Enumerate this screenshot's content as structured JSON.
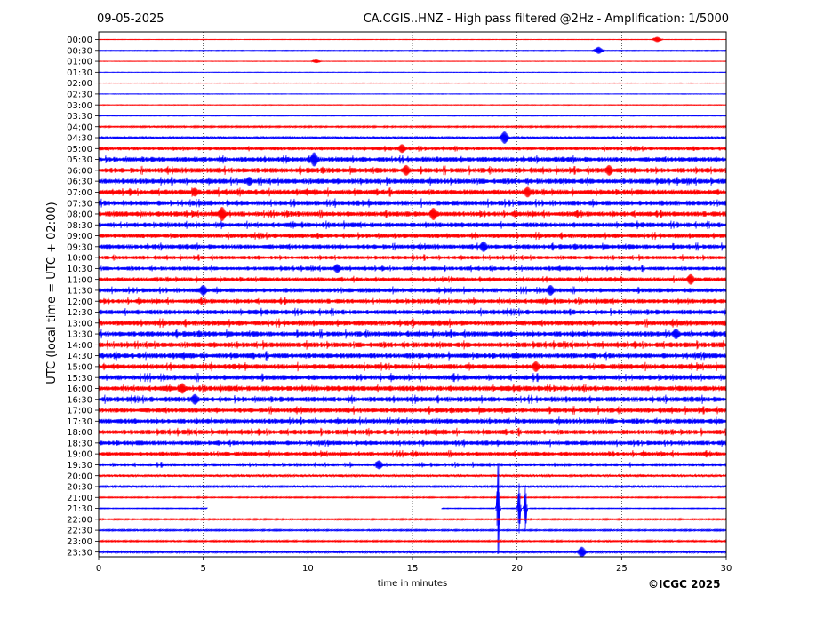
{
  "chart_data": {
    "type": "line",
    "date": "09-05-2025",
    "title": "CA.CGIS..HNZ - High pass filtered @2Hz - Amplification: 1/5000",
    "xlabel": "time in minutes",
    "ylabel": "UTC (local time = UTC + 02:00)",
    "xlim": [
      0,
      30
    ],
    "x_ticks": [
      0,
      5,
      10,
      15,
      20,
      25,
      30
    ],
    "rows": [
      "00:00",
      "00:30",
      "01:00",
      "01:30",
      "02:00",
      "02:30",
      "03:00",
      "03:30",
      "04:00",
      "04:30",
      "05:00",
      "05:30",
      "06:00",
      "06:30",
      "07:00",
      "07:30",
      "08:00",
      "08:30",
      "09:00",
      "09:30",
      "10:00",
      "10:30",
      "11:00",
      "11:30",
      "12:00",
      "12:30",
      "13:00",
      "13:30",
      "14:00",
      "14:30",
      "15:00",
      "15:30",
      "16:00",
      "16:30",
      "17:00",
      "17:30",
      "18:00",
      "18:30",
      "19:00",
      "19:30",
      "20:00",
      "20:30",
      "21:00",
      "21:30",
      "22:00",
      "22:30",
      "23:00",
      "23:30"
    ],
    "series_colors": [
      "#ff0000",
      "#0000ff"
    ],
    "row_noise_level": [
      0.3,
      0.3,
      0.3,
      0.3,
      0.3,
      0.3,
      0.4,
      0.5,
      1.0,
      1.4,
      2.0,
      2.8,
      3.0,
      3.0,
      3.0,
      3.0,
      3.0,
      2.8,
      2.6,
      2.6,
      2.2,
      2.2,
      2.4,
      2.6,
      2.6,
      2.8,
      3.0,
      3.0,
      3.0,
      3.0,
      3.0,
      3.0,
      3.0,
      3.0,
      2.8,
      2.8,
      2.8,
      2.6,
      2.4,
      2.0,
      1.4,
      1.2,
      0.8,
      0.6,
      0.9,
      1.0,
      1.0,
      1.2
    ],
    "events": [
      {
        "row": "00:00",
        "minute": 26.7,
        "amplitude": 3
      },
      {
        "row": "00:30",
        "minute": 23.9,
        "amplitude": 4
      },
      {
        "row": "01:00",
        "minute": 10.4,
        "amplitude": 2
      },
      {
        "row": "04:30",
        "minute": 19.4,
        "amplitude": 7
      },
      {
        "row": "05:00",
        "minute": 14.5,
        "amplitude": 5
      },
      {
        "row": "05:30",
        "minute": 10.3,
        "amplitude": 8
      },
      {
        "row": "06:00",
        "minute": 14.7,
        "amplitude": 6
      },
      {
        "row": "06:00",
        "minute": 24.4,
        "amplitude": 6
      },
      {
        "row": "06:30",
        "minute": 7.2,
        "amplitude": 5
      },
      {
        "row": "07:00",
        "minute": 4.6,
        "amplitude": 5
      },
      {
        "row": "07:00",
        "minute": 20.5,
        "amplitude": 6
      },
      {
        "row": "08:00",
        "minute": 5.9,
        "amplitude": 8
      },
      {
        "row": "08:00",
        "minute": 16.0,
        "amplitude": 7
      },
      {
        "row": "09:30",
        "minute": 18.4,
        "amplitude": 6
      },
      {
        "row": "10:30",
        "minute": 11.4,
        "amplitude": 5
      },
      {
        "row": "11:00",
        "minute": 28.3,
        "amplitude": 6
      },
      {
        "row": "11:30",
        "minute": 5.0,
        "amplitude": 6
      },
      {
        "row": "11:30",
        "minute": 21.6,
        "amplitude": 6
      },
      {
        "row": "13:30",
        "minute": 27.6,
        "amplitude": 6
      },
      {
        "row": "15:00",
        "minute": 20.9,
        "amplitude": 6
      },
      {
        "row": "16:00",
        "minute": 4.0,
        "amplitude": 6
      },
      {
        "row": "16:30",
        "minute": 4.6,
        "amplitude": 6
      },
      {
        "row": "19:30",
        "minute": 13.4,
        "amplitude": 5
      },
      {
        "row": "21:30",
        "minute": 19.1,
        "amplitude": 58
      },
      {
        "row": "21:30",
        "minute": 20.1,
        "amplitude": 28
      },
      {
        "row": "21:30",
        "minute": 20.4,
        "amplitude": 26
      },
      {
        "row": "23:30",
        "minute": 23.1,
        "amplitude": 6
      }
    ],
    "data_gap": {
      "row": "21:30",
      "from_minute": 5.2,
      "to_minute": 16.4
    }
  },
  "footer": {
    "credit": "©ICGC 2025"
  }
}
